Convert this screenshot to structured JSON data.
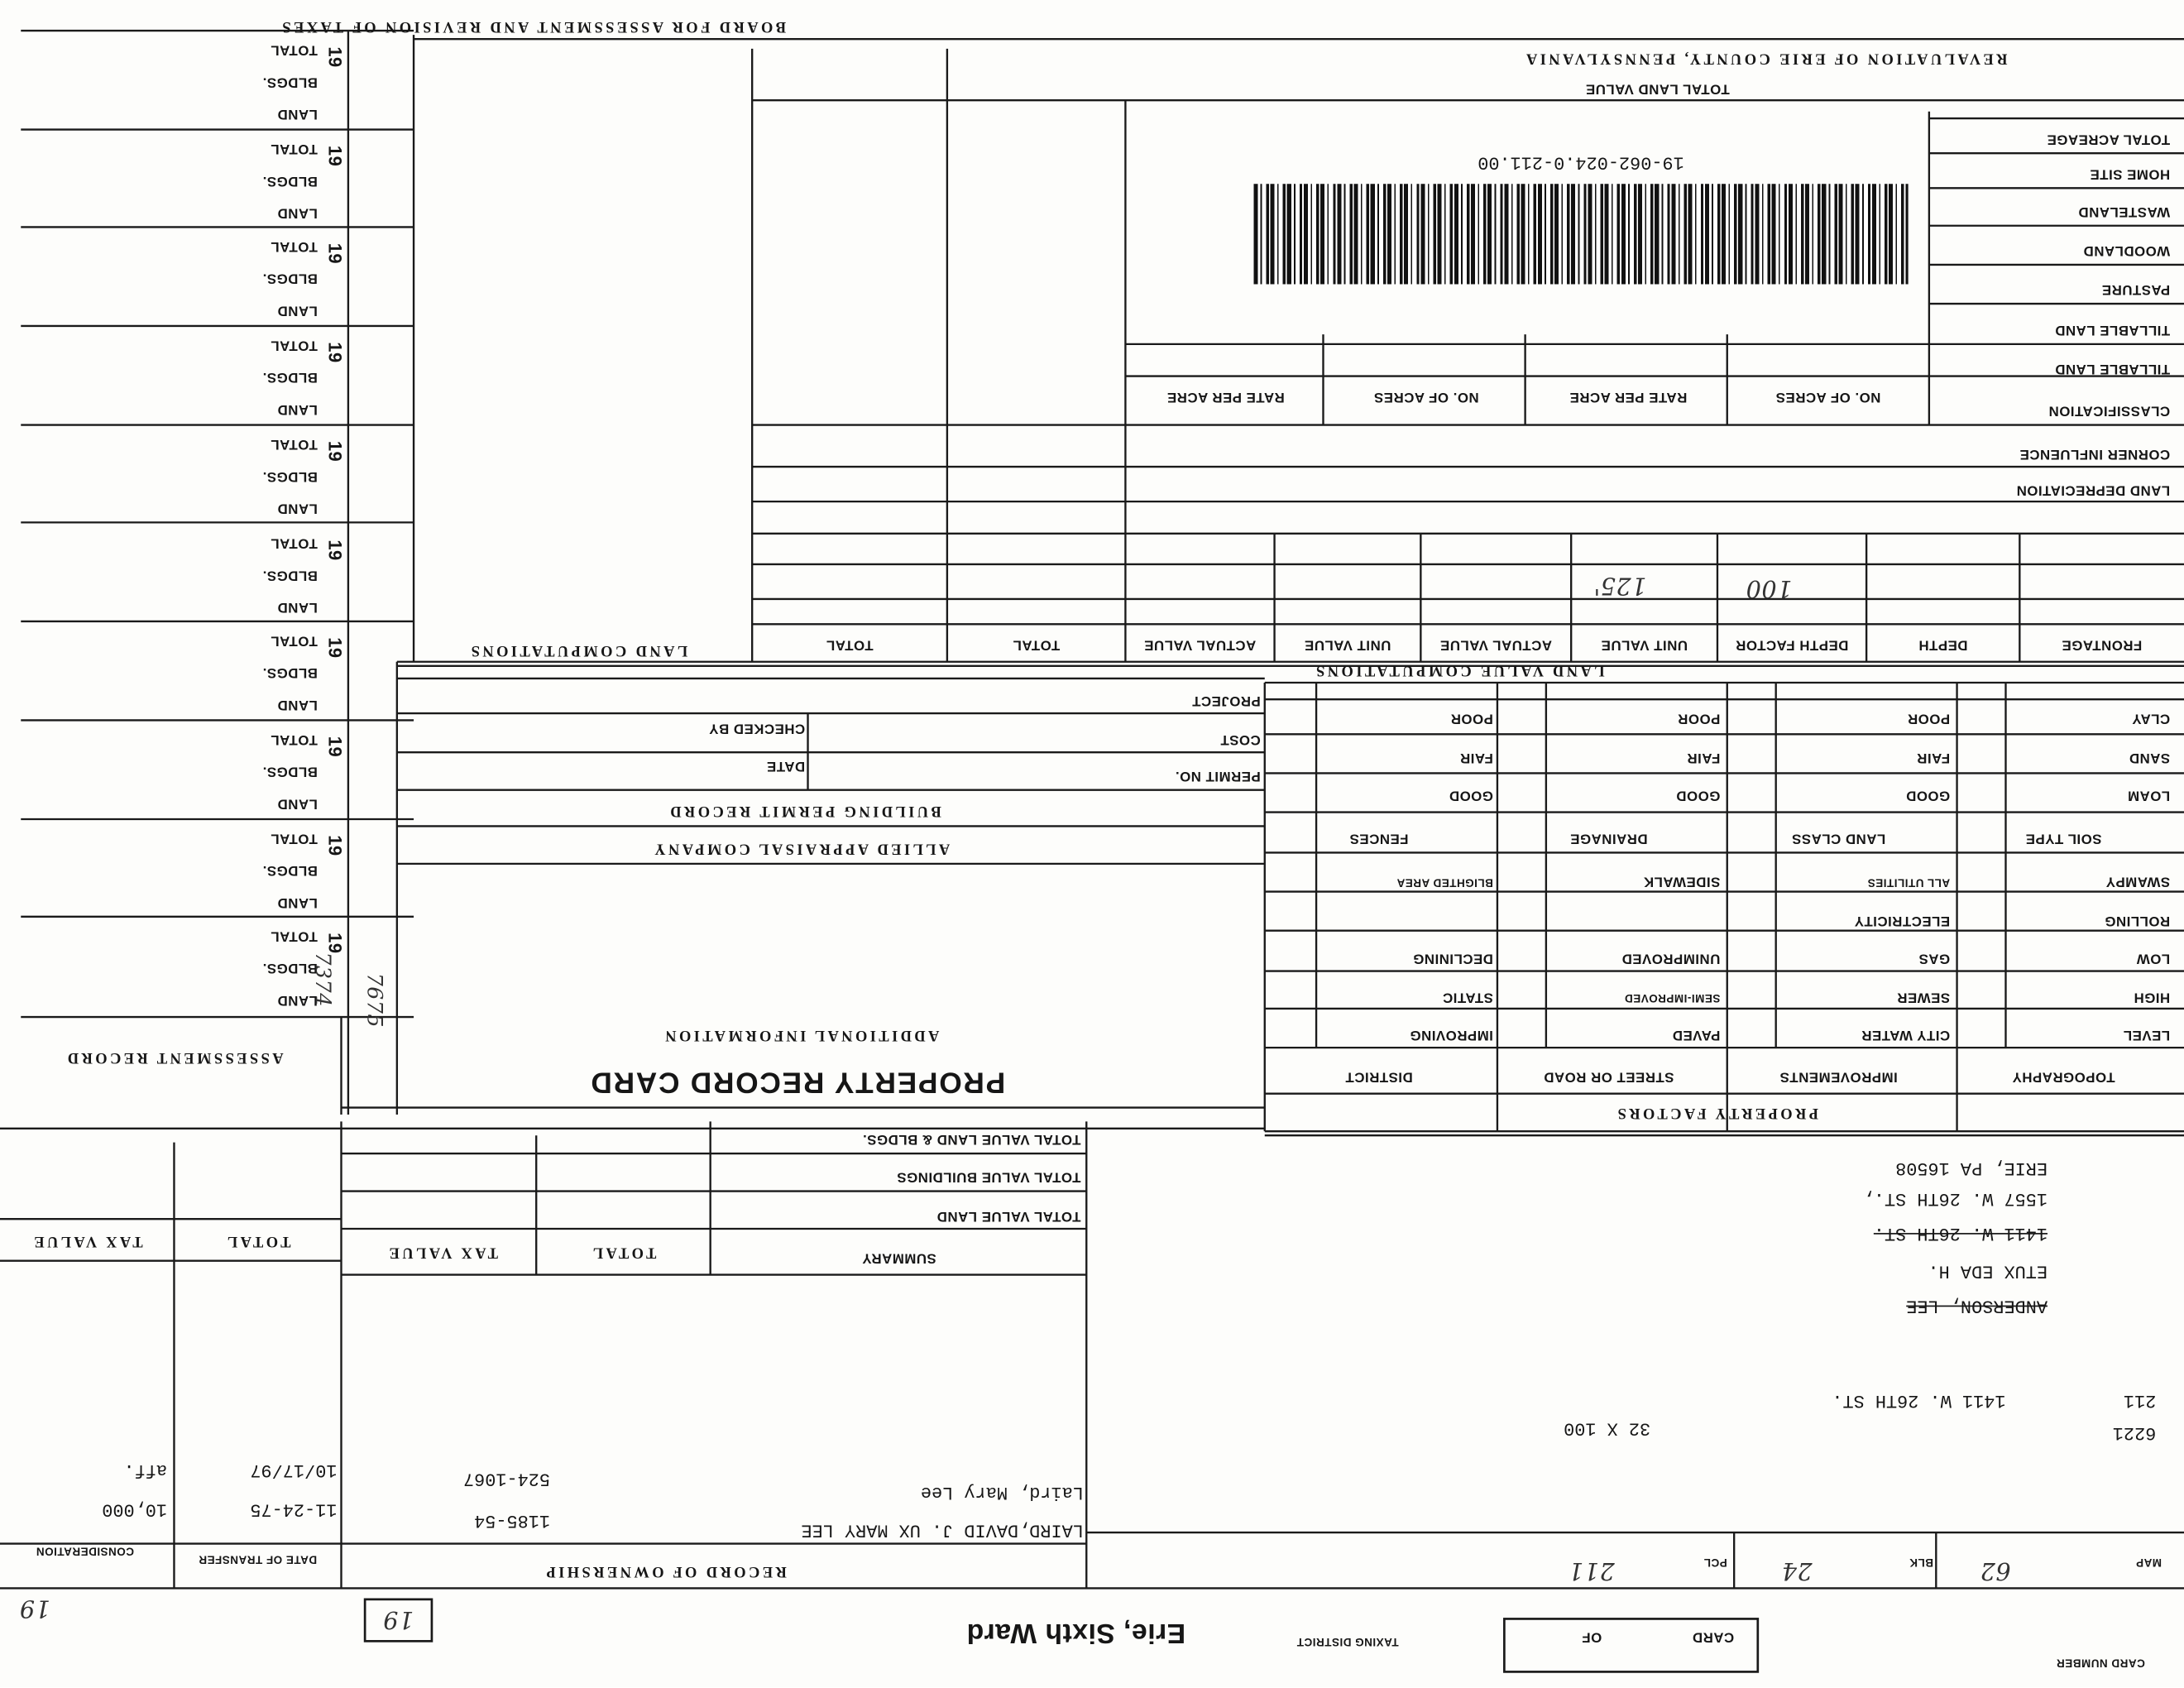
{
  "header": {
    "board_title": "BOARD FOR ASSESSMENT AND REVISION OF TAXES",
    "county_title": "REVALUATION OF ERIE COUNTY, PENNSYLVANIA",
    "parcel_number": "19-062-024.0-211.00"
  },
  "assessment_record": {
    "title": "ASSESSMENT RECORD",
    "years": [
      {
        "year": "19",
        "total": "TOTAL",
        "buildings": "BLDGS.",
        "land": "LAND"
      },
      {
        "year": "19",
        "total": "TOTAL",
        "buildings": "BLDGS.",
        "land": "LAND"
      },
      {
        "year": "19",
        "total": "TOTAL",
        "buildings": "BLDGS.",
        "land": "LAND"
      },
      {
        "year": "19",
        "total": "TOTAL",
        "buildings": "BLDGS.",
        "land": "LAND"
      },
      {
        "year": "19",
        "total": "TOTAL",
        "buildings": "BLDGS.",
        "land": "LAND"
      },
      {
        "year": "19",
        "total": "TOTAL",
        "buildings": "BLDGS.",
        "land": "LAND"
      },
      {
        "year": "19",
        "total": "TOTAL",
        "buildings": "BLDGS.",
        "land": "LAND"
      },
      {
        "year": "19",
        "total": "TOTAL",
        "buildings": "BLDGS.",
        "land": "LAND"
      },
      {
        "year": "19",
        "total": "TOTAL",
        "buildings": "BLDGS.",
        "land": "LAND"
      },
      {
        "year": "19",
        "total": "TOTAL",
        "buildings": "BLDGS.",
        "land": "LAND"
      }
    ],
    "entries": [
      "7374",
      "7675"
    ]
  },
  "land": {
    "total_land_value": "TOTAL LAND VALUE",
    "acreage": [
      "TILLABLE LAND",
      "TILLABLE LAND",
      "PASTURE",
      "WOODLAND",
      "WASTELAND",
      "HOME SITE",
      "TOTAL ACREAGE"
    ],
    "classification": "CLASSIFICATION",
    "acreage_columns": [
      "NO. OF ACRES",
      "RATE PER ACRE",
      "NO. OF ACRES",
      "RATE PER ACRE"
    ],
    "corner_influence": "CORNER INFLUENCE",
    "land_depreciation": "LAND DEPRECIATION",
    "computations_title": "LAND VALUE COMPUTATIONS",
    "computation_columns": [
      "FRONTAGE",
      "DEPTH",
      "DEPTH FACTOR",
      "UNIT VALUE",
      "ACTUAL VALUE",
      "UNIT VALUE",
      "ACTUAL VALUE",
      "TOTAL",
      "TOTAL"
    ],
    "computation_entries": {
      "depth_factor": "100",
      "unit_value": "125'"
    },
    "land_computations_title": "LAND COMPUTATIONS"
  },
  "property_factors": {
    "title": "PROPERTY FACTORS",
    "columns": [
      {
        "header": "TOPOGRAPHY",
        "items": [
          "LEVEL",
          "HIGH",
          "LOW",
          "ROLLING",
          "SWAMPY"
        ],
        "sub_header": "SOIL TYPE",
        "sub_items": [
          "LOAM",
          "SAND",
          "CLAY"
        ]
      },
      {
        "header": "IMPROVEMENTS",
        "items": [
          "CITY WATER",
          "SEWER",
          "GAS",
          "ELECTRICITY",
          "ALL UTILITIES"
        ],
        "sub_header": "LAND CLASS",
        "sub_items": [
          "GOOD",
          "FAIR",
          "POOR"
        ]
      },
      {
        "header": "STREET OR ROAD",
        "items": [
          "PAVED",
          "SEMI-IMPROVED",
          "UNIMPROVED",
          "SIDEWALK"
        ],
        "sub_header": "DRAINAGE",
        "sub_items": [
          "GOOD",
          "FAIR",
          "POOR"
        ]
      },
      {
        "header": "DISTRICT",
        "items": [
          "IMPROVING",
          "STATIC",
          "DECLINING",
          "BLIGHTED AREA"
        ],
        "sub_header": "FENCES",
        "sub_items": [
          "GOOD",
          "FAIR",
          "POOR"
        ]
      }
    ]
  },
  "building_permit": {
    "title": "BUILDING PERMIT RECORD",
    "fields": [
      "PERMIT NO.",
      "COST",
      "PROJECT"
    ],
    "checked_by": "CHECKED BY",
    "date": "DATE"
  },
  "company": "ALLIED APPRAISAL COMPANY",
  "additional_information": "ADDITIONAL INFORMATION",
  "card_title": "PROPERTY RECORD CARD",
  "summary": {
    "title": "SUMMARY",
    "rows": [
      "TOTAL VALUE LAND",
      "TOTAL VALUE BUILDINGS",
      "TOTAL VALUE LAND & BLDGS."
    ],
    "columns": [
      "TOTAL",
      "TAX VALUE",
      "TOTAL",
      "TAX VALUE"
    ]
  },
  "owner_address": {
    "lines": [
      "ANDERSON, LEE",
      "ETUX EDA H.",
      "1411 W. 26TH ST.",
      "1557 W. 26TH ST.,",
      "ERIE, PA 16508"
    ]
  },
  "property_line": {
    "parcel": "211",
    "address": "1411 W. 26TH ST.",
    "code": "6221",
    "dimensions": "32 X 100"
  },
  "ownership": {
    "title": "RECORD OF OWNERSHIP",
    "date_header": "DATE OF TRANSFER",
    "consideration_header": "CONSIDERATION",
    "records": [
      {
        "name": "LAIRD,DAVID J. UX MARY LEE",
        "book": "1185-54",
        "date": "11-24-75",
        "consideration": "10,000"
      },
      {
        "name": "Laird, Mary Lee",
        "book": "524-1067",
        "date": "10/17/97",
        "consideration": "aff."
      }
    ]
  },
  "location": {
    "map_label": "MAP",
    "map": "62",
    "block_label": "BLK",
    "block": "24",
    "parcel_label": "PCL",
    "parcel": "211"
  },
  "footer": {
    "card_number": "CARD NUMBER",
    "card": "CARD",
    "of": "OF",
    "taxing_district": "TAXING DISTRICT",
    "district": "Erie, Sixth Ward",
    "year": "19",
    "year_note": "19"
  }
}
